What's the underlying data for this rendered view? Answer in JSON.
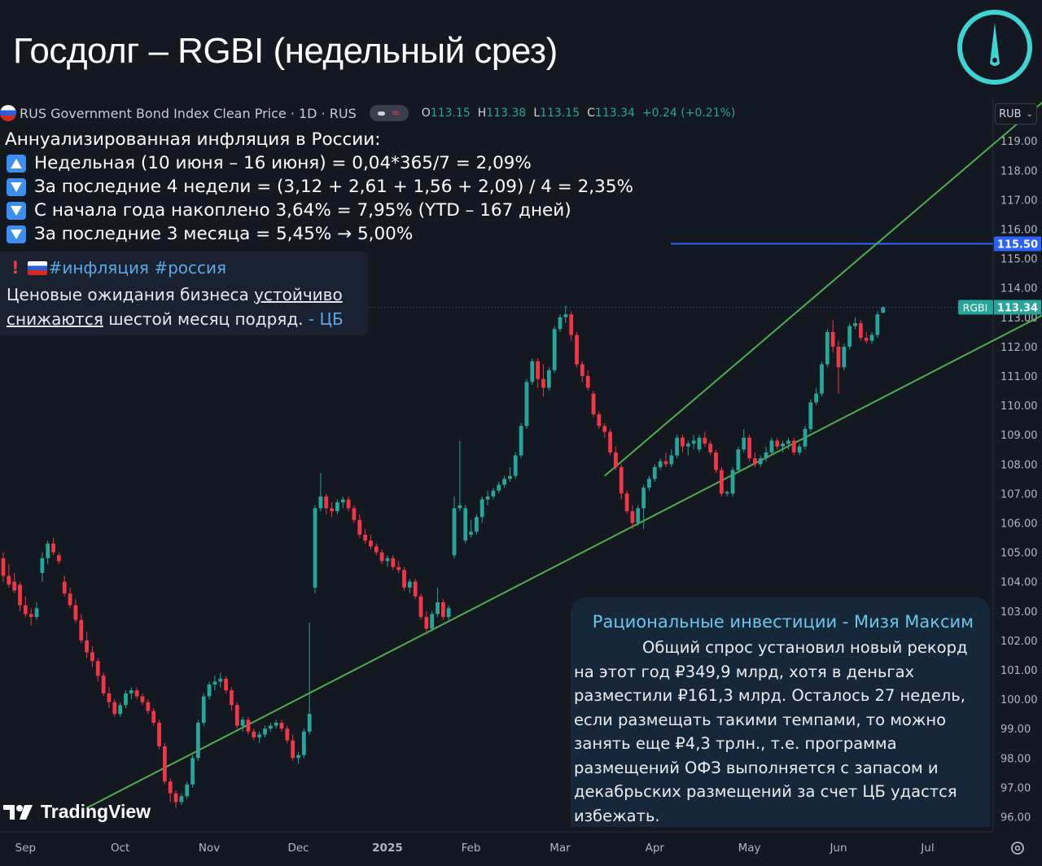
{
  "header": {
    "title": "Госдолг – RGBI (недельный срез)"
  },
  "legend": {
    "instrument": "RUS Government Bond Index Clean Price · 1D · RUS",
    "ohlc": [
      {
        "k": "O",
        "v": "113.15"
      },
      {
        "k": "H",
        "v": "113.38"
      },
      {
        "k": "L",
        "v": "113.15"
      },
      {
        "k": "C",
        "v": "113.34"
      },
      {
        "k": "",
        "v": "+0.24 (+0.21%)"
      }
    ]
  },
  "inflation": {
    "heading": "Аннуализированная инфляция в России:",
    "rows": [
      {
        "dir": "up",
        "text": "Недельная (10 июня – 16 июня) = 0,04*365/7 = 2,09%"
      },
      {
        "dir": "down",
        "text": "За последние 4 недели = (3,12 + 2,61 + 1,56 + 2,09) / 4 = 2,35%"
      },
      {
        "dir": "down",
        "text": "С начала года накоплено 3,64% = 7,95% (YTD – 167 дней)"
      },
      {
        "dir": "down",
        "text": "За последние 3 месяца = 5,45% → 5,00%"
      }
    ]
  },
  "telegram_note": {
    "tags": "#инфляция #россия",
    "line1_prefix": "Ценовые ожидания бизнеса ",
    "line1_underlined": "устойчиво",
    "line2_underlined": "снижаются",
    "line2_suffix": " шестой месяц подряд.  ",
    "source": "- ЦБ"
  },
  "commentary": {
    "title": "Рациональные инвестиции - Мизя Максим",
    "body": "Общий спрос установил новый рекорд на этот год ₽349,9 млрд, хотя в деньгах разместили ₽161,3 млрд. Осталось 27 недель, если размещать такими темпами, то можно занять еще ₽4,3 трлн., т.е. программа размещений ОФЗ выполняется с запасом и декабрьских размещений за счет ЦБ удастся избежать."
  },
  "branding": {
    "tradingview": "TradingView"
  },
  "controls": {
    "currency": "RUB"
  },
  "colors": {
    "background": "#141821",
    "up": "#26a69a",
    "down": "#f23645",
    "channel": "#4caf50",
    "hline": "#2962ff",
    "badge": "#2962ff",
    "last_price": "#26a69a",
    "logo": "#3fd4d4"
  },
  "chart_data": {
    "type": "candlestick",
    "symbol": "RGBI",
    "yticks": [
      96,
      97,
      98,
      99,
      100,
      101,
      102,
      103,
      104,
      105,
      106,
      107,
      108,
      109,
      110,
      111,
      112,
      113,
      114,
      115,
      116,
      117,
      118,
      119
    ],
    "ylim": [
      95.4,
      120.4
    ],
    "xticks": [
      "Sep",
      "Oct",
      "Nov",
      "Dec",
      "2025",
      "Feb",
      "Mar",
      "Apr",
      "May",
      "Jun",
      "Jul"
    ],
    "horizontal_line": {
      "value": 115.5,
      "label": "115.50"
    },
    "last_price": {
      "value": 113.34,
      "label": "113.34",
      "tag": "RGBI"
    },
    "channel": {
      "upper": [
        [
          108,
          107.6
        ],
        [
          189,
          120.7
        ]
      ],
      "lower": [
        [
          15,
          96.3
        ],
        [
          190,
          113.4
        ]
      ]
    },
    "candles": [
      [
        0,
        104.8,
        105.0,
        104.0,
        104.2
      ],
      [
        1,
        104.2,
        104.6,
        103.8,
        103.9
      ],
      [
        2,
        104.0,
        104.3,
        103.6,
        103.7
      ],
      [
        3,
        103.9,
        104.0,
        103.0,
        103.2
      ],
      [
        4,
        103.2,
        103.5,
        102.8,
        102.9
      ],
      [
        5,
        102.9,
        103.1,
        102.5,
        102.8
      ],
      [
        6,
        102.8,
        103.3,
        102.7,
        103.1
      ],
      [
        7,
        104.3,
        105.0,
        104.0,
        104.8
      ],
      [
        8,
        104.8,
        105.4,
        104.6,
        105.3
      ],
      [
        9,
        105.3,
        105.5,
        104.9,
        105.0
      ],
      [
        10,
        104.9,
        105.0,
        104.6,
        104.7
      ],
      [
        11,
        104.0,
        104.2,
        103.5,
        103.6
      ],
      [
        12,
        103.6,
        103.8,
        103.1,
        103.2
      ],
      [
        13,
        103.2,
        103.4,
        102.6,
        102.7
      ],
      [
        14,
        102.7,
        102.9,
        101.9,
        102.0
      ],
      [
        15,
        102.0,
        102.3,
        101.4,
        101.6
      ],
      [
        16,
        101.6,
        101.8,
        101.1,
        101.3
      ],
      [
        17,
        101.3,
        101.4,
        100.6,
        100.8
      ],
      [
        18,
        100.8,
        100.9,
        100.1,
        100.2
      ],
      [
        19,
        100.2,
        100.4,
        99.7,
        99.9
      ],
      [
        20,
        99.9,
        100.0,
        99.4,
        99.5
      ],
      [
        21,
        99.5,
        99.9,
        99.4,
        99.8
      ],
      [
        22,
        99.8,
        100.3,
        99.7,
        100.2
      ],
      [
        23,
        100.2,
        100.4,
        100.0,
        100.3
      ],
      [
        24,
        100.3,
        100.4,
        100.0,
        100.1
      ],
      [
        25,
        100.1,
        100.2,
        99.8,
        99.9
      ],
      [
        26,
        99.9,
        100.0,
        99.5,
        99.6
      ],
      [
        27,
        99.6,
        99.7,
        99.1,
        99.2
      ],
      [
        28,
        99.2,
        99.3,
        98.3,
        98.4
      ],
      [
        29,
        98.4,
        98.5,
        97.1,
        97.2
      ],
      [
        30,
        97.2,
        97.3,
        96.5,
        96.8
      ],
      [
        31,
        96.8,
        96.9,
        96.3,
        96.5
      ],
      [
        32,
        96.5,
        96.8,
        96.4,
        96.7
      ],
      [
        33,
        96.7,
        97.2,
        96.6,
        97.1
      ],
      [
        34,
        97.1,
        98.1,
        97.0,
        98.0
      ],
      [
        35,
        98.0,
        99.3,
        97.9,
        99.2
      ],
      [
        36,
        99.2,
        100.2,
        99.1,
        100.1
      ],
      [
        37,
        100.1,
        100.6,
        100.0,
        100.5
      ],
      [
        38,
        100.5,
        100.8,
        100.3,
        100.6
      ],
      [
        39,
        100.6,
        100.9,
        100.4,
        100.7
      ],
      [
        40,
        100.7,
        100.8,
        100.2,
        100.3
      ],
      [
        41,
        100.3,
        100.4,
        99.6,
        99.8
      ],
      [
        42,
        99.8,
        99.9,
        99.0,
        99.1
      ],
      [
        43,
        99.1,
        99.4,
        98.9,
        99.3
      ],
      [
        44,
        99.3,
        99.4,
        98.8,
        98.9
      ],
      [
        45,
        98.9,
        99.0,
        98.6,
        98.7
      ],
      [
        46,
        98.7,
        98.9,
        98.5,
        98.8
      ],
      [
        47,
        98.8,
        99.1,
        98.7,
        99.0
      ],
      [
        48,
        99.0,
        99.2,
        98.9,
        99.1
      ],
      [
        49,
        99.1,
        99.3,
        99.0,
        99.2
      ],
      [
        50,
        99.2,
        99.3,
        98.9,
        99.0
      ],
      [
        51,
        99.0,
        99.1,
        98.5,
        98.6
      ],
      [
        52,
        98.6,
        98.8,
        97.9,
        98.0
      ],
      [
        53,
        98.0,
        98.2,
        97.8,
        98.1
      ],
      [
        54,
        98.1,
        99.0,
        98.0,
        98.9
      ],
      [
        55,
        98.9,
        102.6,
        98.8,
        99.5
      ],
      [
        56,
        103.8,
        106.6,
        103.6,
        106.5
      ],
      [
        57,
        106.5,
        107.7,
        106.4,
        106.9
      ],
      [
        58,
        106.9,
        107.0,
        106.3,
        106.5
      ],
      [
        59,
        106.5,
        106.7,
        106.2,
        106.4
      ],
      [
        60,
        106.4,
        106.8,
        106.3,
        106.7
      ],
      [
        61,
        106.7,
        106.9,
        106.5,
        106.8
      ],
      [
        62,
        106.8,
        106.9,
        106.4,
        106.5
      ],
      [
        63,
        106.5,
        106.6,
        106.0,
        106.1
      ],
      [
        64,
        106.1,
        106.3,
        105.5,
        105.6
      ],
      [
        65,
        105.6,
        105.8,
        105.3,
        105.4
      ],
      [
        66,
        105.4,
        105.6,
        105.1,
        105.2
      ],
      [
        67,
        105.2,
        105.3,
        104.9,
        105.0
      ],
      [
        68,
        105.0,
        105.1,
        104.6,
        104.7
      ],
      [
        69,
        104.7,
        104.9,
        104.5,
        104.8
      ],
      [
        70,
        104.8,
        104.9,
        104.4,
        104.5
      ],
      [
        71,
        104.5,
        104.7,
        104.3,
        104.4
      ],
      [
        72,
        104.4,
        104.5,
        103.7,
        103.8
      ],
      [
        73,
        103.8,
        104.1,
        103.6,
        104.0
      ],
      [
        74,
        104.0,
        104.1,
        103.4,
        103.5
      ],
      [
        75,
        103.5,
        103.6,
        102.7,
        102.8
      ],
      [
        76,
        102.8,
        103.0,
        102.2,
        102.4
      ],
      [
        77,
        102.4,
        103.0,
        102.3,
        102.9
      ],
      [
        78,
        102.9,
        103.8,
        102.8,
        103.3
      ],
      [
        79,
        103.3,
        103.4,
        102.7,
        102.8
      ],
      [
        80,
        102.8,
        103.2,
        102.7,
        103.1
      ],
      [
        81,
        104.9,
        106.9,
        104.8,
        106.5
      ],
      [
        82,
        106.5,
        108.8,
        106.4,
        106.6
      ],
      [
        83,
        105.4,
        106.6,
        105.3,
        106.5
      ],
      [
        84,
        105.6,
        106.1,
        105.5,
        105.7
      ],
      [
        85,
        105.7,
        106.3,
        105.6,
        106.2
      ],
      [
        86,
        106.2,
        106.9,
        106.0,
        106.8
      ],
      [
        87,
        106.8,
        107.1,
        106.6,
        106.9
      ],
      [
        88,
        106.9,
        107.2,
        106.8,
        107.1
      ],
      [
        89,
        107.1,
        107.4,
        107.0,
        107.3
      ],
      [
        90,
        107.3,
        107.6,
        107.2,
        107.5
      ],
      [
        91,
        107.5,
        107.9,
        107.4,
        107.6
      ],
      [
        92,
        107.6,
        108.4,
        107.5,
        108.3
      ],
      [
        93,
        108.3,
        109.4,
        108.2,
        109.3
      ],
      [
        94,
        109.3,
        110.9,
        109.2,
        110.8
      ],
      [
        95,
        110.8,
        111.6,
        110.7,
        111.5
      ],
      [
        96,
        111.5,
        111.6,
        110.6,
        110.9
      ],
      [
        97,
        110.9,
        111.4,
        110.3,
        110.6
      ],
      [
        98,
        110.6,
        111.3,
        110.5,
        111.2
      ],
      [
        99,
        111.2,
        112.7,
        111.1,
        112.6
      ],
      [
        100,
        112.6,
        113.1,
        112.5,
        113.0
      ],
      [
        101,
        113.0,
        113.4,
        112.8,
        113.1
      ],
      [
        102,
        113.1,
        113.2,
        112.2,
        112.4
      ],
      [
        103,
        112.4,
        112.5,
        111.3,
        111.4
      ],
      [
        104,
        111.4,
        111.5,
        110.8,
        111.0
      ],
      [
        105,
        111.0,
        111.2,
        110.5,
        110.6
      ],
      [
        106,
        110.4,
        110.5,
        109.6,
        109.7
      ],
      [
        107,
        109.7,
        109.8,
        109.2,
        109.3
      ],
      [
        108,
        109.3,
        109.4,
        108.9,
        109.1
      ],
      [
        109,
        109.1,
        109.2,
        108.3,
        108.4
      ],
      [
        110,
        108.4,
        108.6,
        107.8,
        107.9
      ],
      [
        111,
        107.9,
        108.0,
        106.8,
        107.0
      ],
      [
        112,
        107.0,
        107.1,
        106.3,
        106.4
      ],
      [
        113,
        106.4,
        106.6,
        105.8,
        106.0
      ],
      [
        114,
        106.0,
        106.6,
        105.9,
        106.5
      ],
      [
        115,
        106.5,
        107.3,
        105.8,
        107.2
      ],
      [
        116,
        107.2,
        107.6,
        107.1,
        107.5
      ],
      [
        117,
        107.5,
        108.0,
        107.4,
        107.9
      ],
      [
        118,
        107.9,
        108.2,
        107.8,
        108.1
      ],
      [
        119,
        108.1,
        108.4,
        107.9,
        108.0
      ],
      [
        120,
        108.0,
        108.5,
        107.9,
        108.3
      ],
      [
        121,
        108.3,
        109.0,
        108.2,
        108.9
      ],
      [
        122,
        108.9,
        109.0,
        108.4,
        108.6
      ],
      [
        123,
        108.6,
        108.8,
        108.3,
        108.7
      ],
      [
        124,
        108.7,
        109.0,
        108.5,
        108.8
      ],
      [
        125,
        108.5,
        109.0,
        108.4,
        108.9
      ],
      [
        126,
        108.9,
        109.1,
        108.6,
        108.7
      ],
      [
        127,
        108.7,
        108.8,
        108.3,
        108.4
      ],
      [
        128,
        108.4,
        108.5,
        107.7,
        107.8
      ],
      [
        129,
        107.8,
        107.9,
        106.9,
        107.0
      ],
      [
        130,
        107.0,
        107.1,
        106.9,
        107.05
      ],
      [
        131,
        107.0,
        107.9,
        106.9,
        107.8
      ],
      [
        132,
        107.8,
        108.6,
        107.7,
        108.5
      ],
      [
        133,
        108.5,
        109.2,
        108.4,
        108.9
      ],
      [
        134,
        108.9,
        109.0,
        108.1,
        108.2
      ],
      [
        135,
        108.2,
        108.4,
        107.9,
        108.0
      ],
      [
        136,
        108.0,
        108.3,
        107.9,
        108.2
      ],
      [
        137,
        108.2,
        108.6,
        108.1,
        108.4
      ],
      [
        138,
        108.4,
        108.9,
        108.3,
        108.8
      ],
      [
        139,
        108.8,
        108.9,
        108.5,
        108.6
      ],
      [
        140,
        108.6,
        108.8,
        108.4,
        108.7
      ],
      [
        141,
        108.7,
        108.9,
        108.5,
        108.8
      ],
      [
        142,
        108.8,
        108.9,
        108.3,
        108.4
      ],
      [
        143,
        108.4,
        108.7,
        108.3,
        108.6
      ],
      [
        144,
        108.6,
        109.3,
        108.5,
        109.2
      ],
      [
        145,
        109.2,
        110.2,
        109.1,
        110.1
      ],
      [
        146,
        110.1,
        110.6,
        110.0,
        110.4
      ],
      [
        147,
        110.4,
        111.5,
        110.3,
        111.4
      ],
      [
        148,
        111.4,
        112.6,
        111.3,
        112.5
      ],
      [
        149,
        112.5,
        112.9,
        111.8,
        112.0
      ],
      [
        150,
        112.0,
        112.2,
        110.4,
        111.3
      ],
      [
        151,
        111.3,
        112.1,
        111.2,
        112.0
      ],
      [
        152,
        112.0,
        112.8,
        111.9,
        112.7
      ],
      [
        153,
        112.7,
        113.0,
        112.6,
        112.8
      ],
      [
        154,
        112.8,
        112.9,
        112.2,
        112.3
      ],
      [
        155,
        112.3,
        112.5,
        112.1,
        112.2
      ],
      [
        156,
        112.2,
        112.5,
        112.1,
        112.4
      ],
      [
        157,
        112.4,
        113.2,
        112.3,
        113.1
      ],
      [
        158,
        113.15,
        113.38,
        113.15,
        113.34
      ]
    ]
  }
}
